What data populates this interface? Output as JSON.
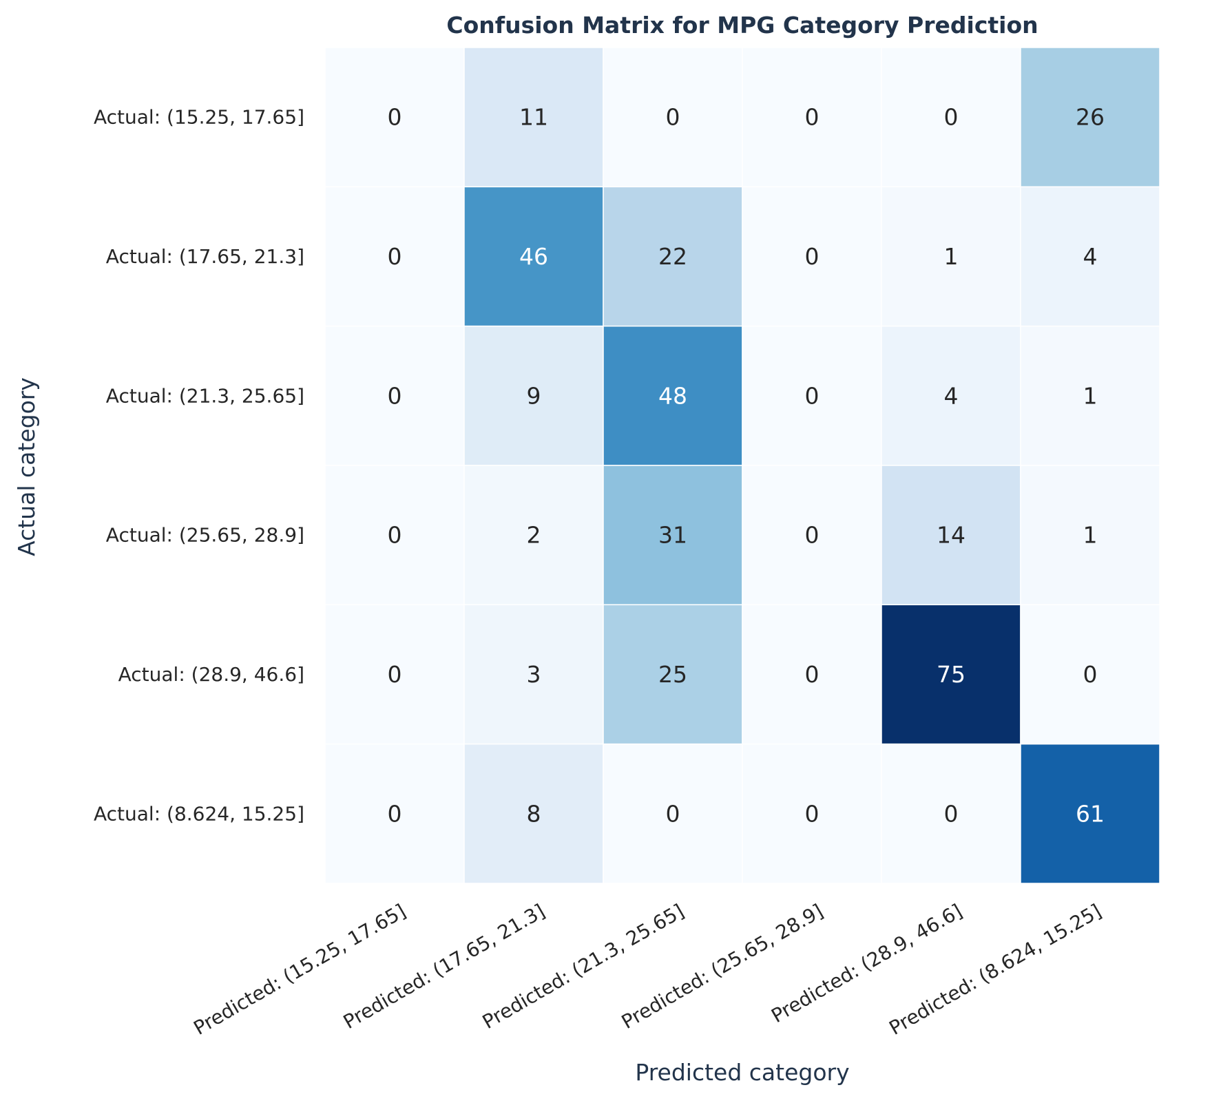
{
  "chart_data": {
    "type": "heatmap",
    "title": "Confusion Matrix for MPG Category Prediction",
    "xlabel": "Predicted category",
    "ylabel": "Actual category",
    "x_categories": [
      "Predicted: (15.25, 17.65]",
      "Predicted: (17.65, 21.3]",
      "Predicted: (21.3, 25.65]",
      "Predicted: (25.65, 28.9]",
      "Predicted: (28.9, 46.6]",
      "Predicted: (8.624, 15.25]"
    ],
    "y_categories": [
      "Actual: (15.25, 17.65]",
      "Actual: (17.65, 21.3]",
      "Actual: (21.3, 25.65]",
      "Actual: (25.65, 28.9]",
      "Actual: (28.9, 46.6]",
      "Actual: (8.624, 15.25]"
    ],
    "values": [
      [
        0,
        11,
        0,
        0,
        0,
        26
      ],
      [
        0,
        46,
        22,
        0,
        1,
        4
      ],
      [
        0,
        9,
        48,
        0,
        4,
        1
      ],
      [
        0,
        2,
        31,
        0,
        14,
        1
      ],
      [
        0,
        3,
        25,
        0,
        75,
        0
      ],
      [
        0,
        8,
        0,
        0,
        0,
        61
      ]
    ],
    "colormap": "Blues",
    "value_range": [
      0,
      75
    ],
    "colorbar": false,
    "grid": false
  }
}
